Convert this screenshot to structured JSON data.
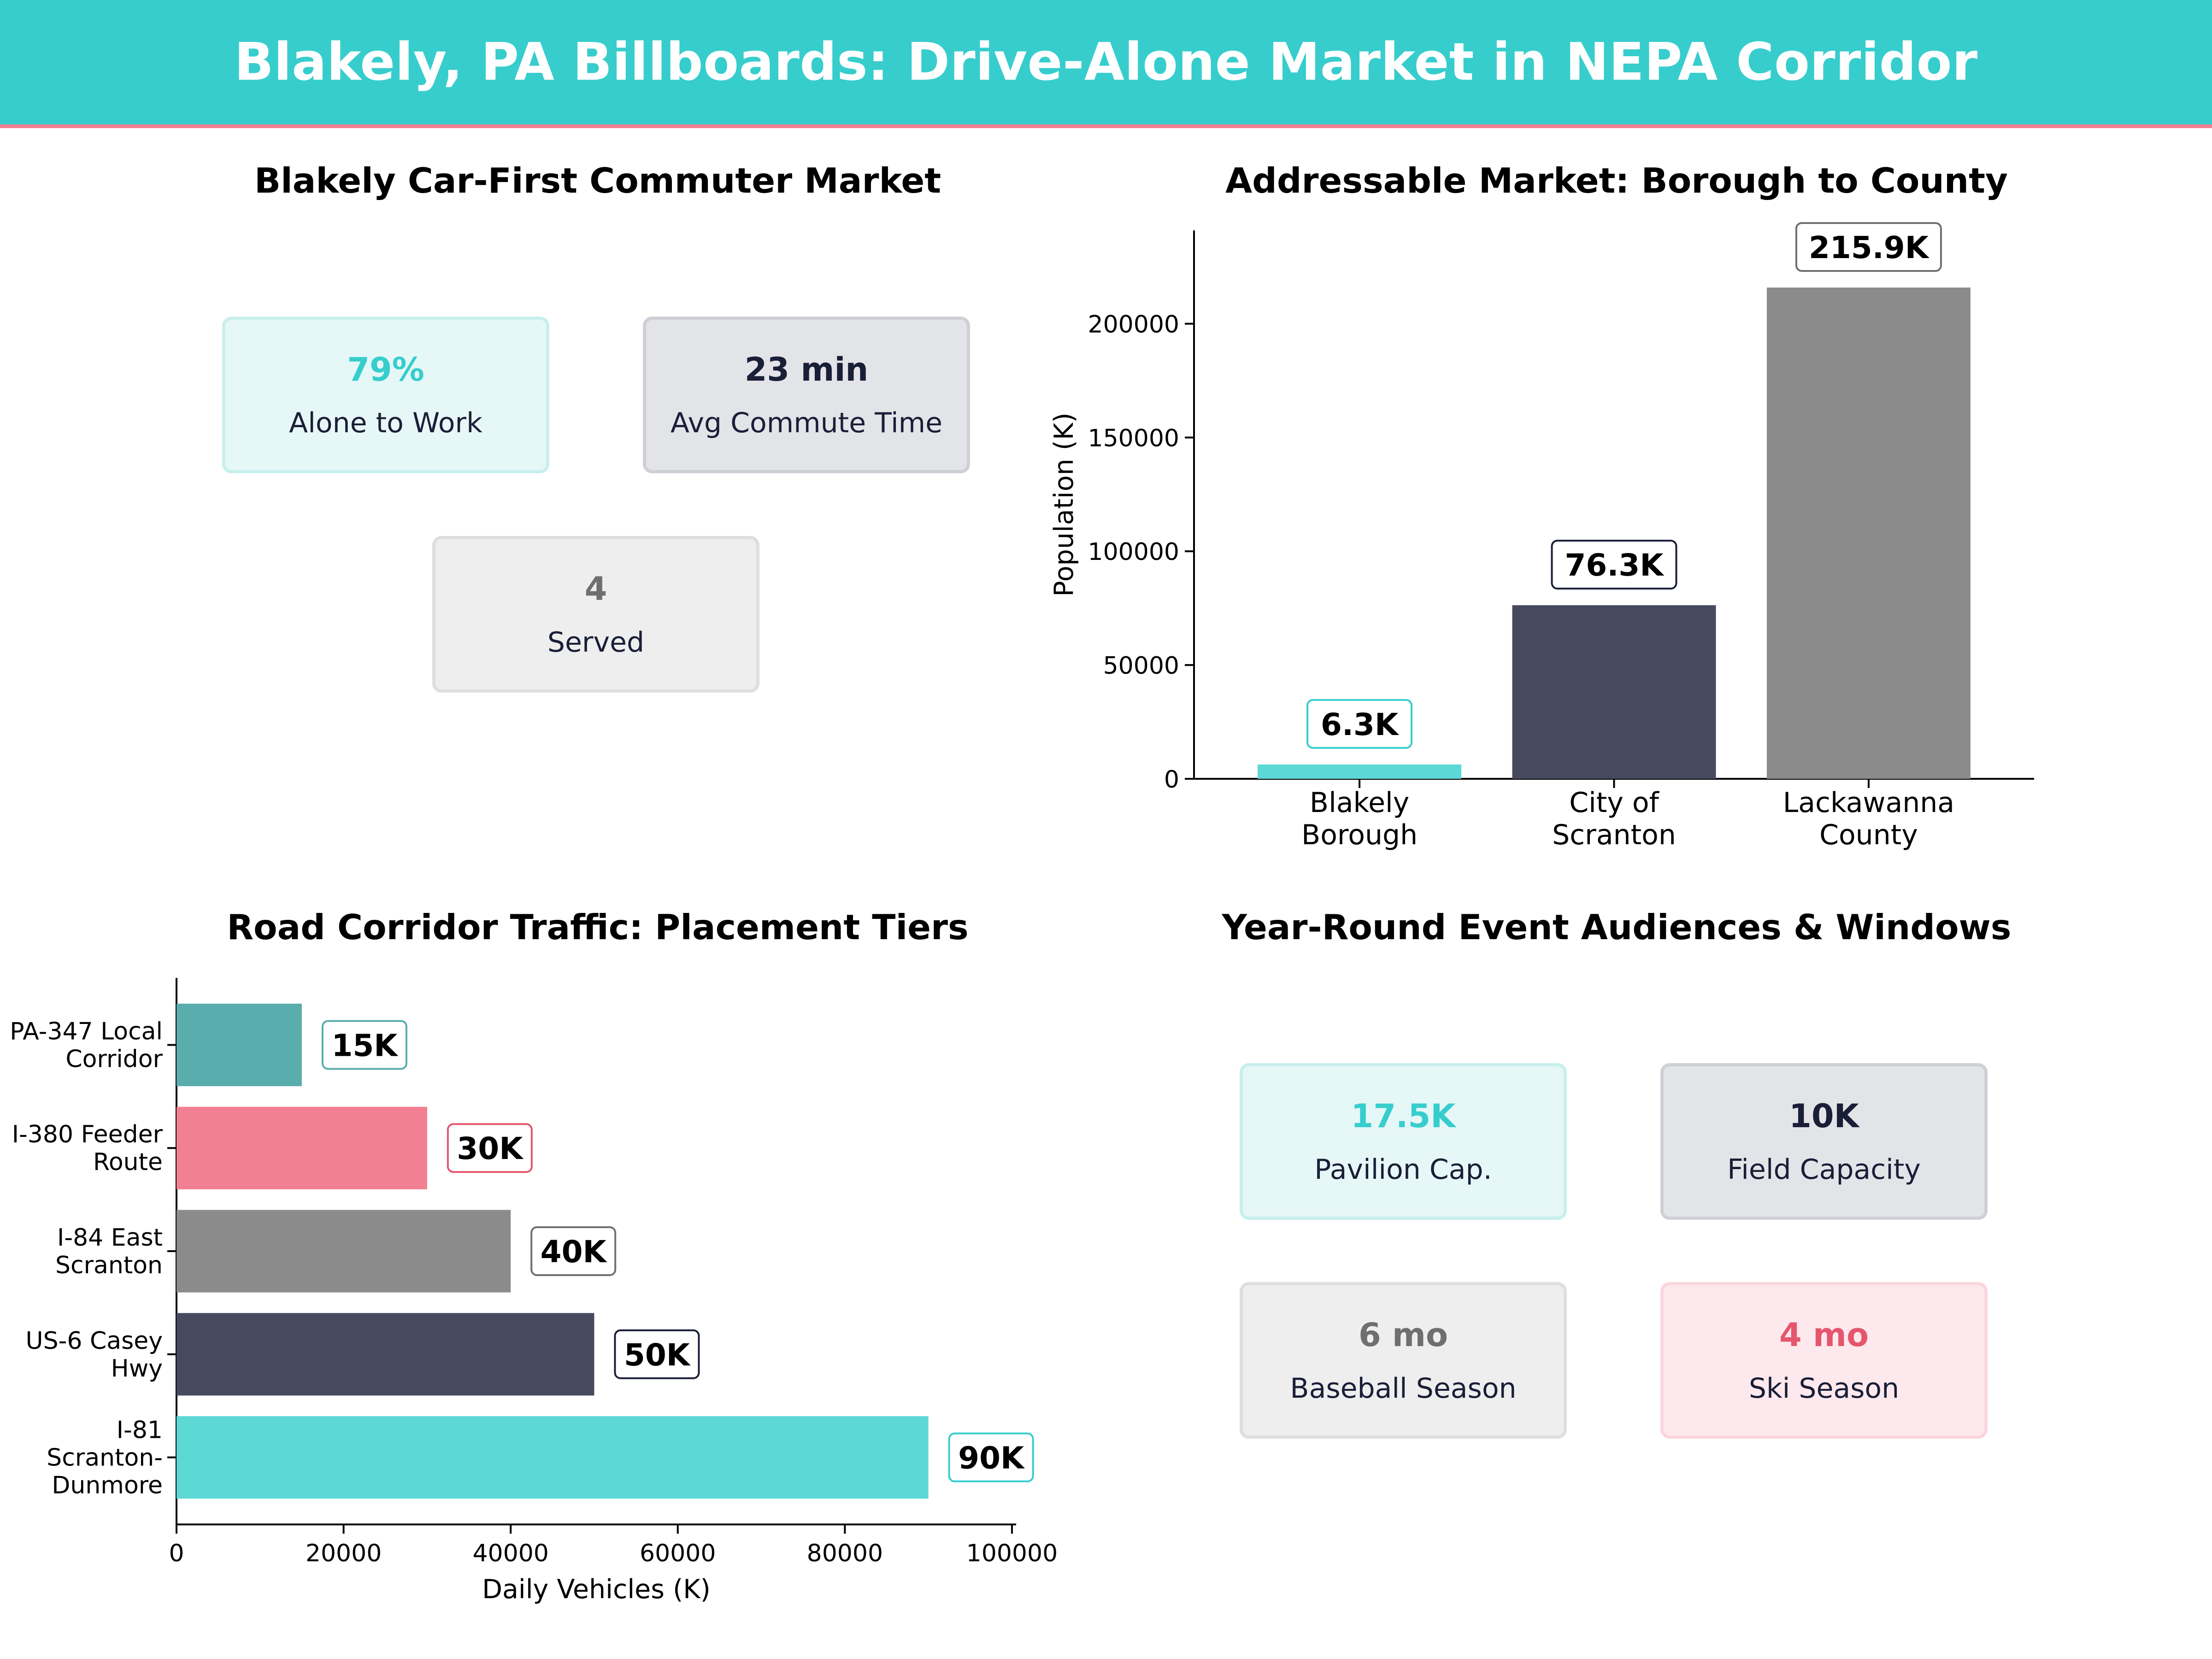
{
  "header": {
    "title": "Blakely, PA Billboards: Drive-Alone Market in NEPA Corridor"
  },
  "colors": {
    "header_bg": "#37cdcd",
    "header_rule": "#f37f93",
    "teal": "#5cd8d5",
    "teal_dark": "#5aadad",
    "navy": "#474a5f",
    "gray": "#8b8b8b",
    "pink": "#f37f93"
  },
  "kpi_panel": {
    "title": "Blakely Car-First Commuter Market",
    "cards": [
      {
        "value": "79%",
        "label": "Alone to Work",
        "style": "teal"
      },
      {
        "value": "23 min",
        "label": "Avg Commute Time",
        "style": "navy"
      },
      {
        "value": "4",
        "label": "Served",
        "style": "gray"
      }
    ]
  },
  "events_panel": {
    "title": "Year-Round Event Audiences & Windows",
    "cards": [
      {
        "value": "17.5K",
        "label": "Pavilion Cap.",
        "style": "teal"
      },
      {
        "value": "10K",
        "label": "Field Capacity",
        "style": "navy"
      },
      {
        "value": "6 mo",
        "label": "Baseball Season",
        "style": "gray"
      },
      {
        "value": "4 mo",
        "label": "Ski Season",
        "style": "pink"
      }
    ]
  },
  "chart_data": [
    {
      "type": "bar",
      "title": "Addressable Market: Borough to County",
      "xlabel": "",
      "ylabel": "Population (K)",
      "categories": [
        [
          "Blakely",
          "Borough"
        ],
        [
          "City of",
          "Scranton"
        ],
        [
          "Lackawanna",
          "County"
        ]
      ],
      "values": [
        6300,
        76300,
        215900
      ],
      "value_labels": [
        "6.3K",
        "76.3K",
        "215.9K"
      ],
      "bar_colors": [
        "#5cd8d5",
        "#474a5f",
        "#8b8b8b"
      ],
      "label_border_colors": [
        "#37cdcd",
        "#1a1e37",
        "#6f6f6f"
      ],
      "ylim": [
        0,
        241000
      ],
      "yticks": [
        0,
        50000,
        100000,
        150000,
        200000
      ],
      "grid": false
    },
    {
      "type": "bar",
      "orientation": "horizontal",
      "title": "Road Corridor Traffic: Placement Tiers",
      "xlabel": "Daily Vehicles (K)",
      "ylabel": "",
      "categories": [
        [
          "PA-347 Local",
          "Corridor"
        ],
        [
          "I-380 Feeder",
          "Route"
        ],
        [
          "I-84 East",
          "Scranton"
        ],
        [
          "US-6 Casey",
          "Hwy"
        ],
        [
          "I-81",
          "Scranton-",
          "Dunmore"
        ]
      ],
      "values": [
        15000,
        30000,
        40000,
        50000,
        90000
      ],
      "value_labels": [
        "15K",
        "30K",
        "40K",
        "50K",
        "90K"
      ],
      "bar_colors": [
        "#5aadad",
        "#f37f93",
        "#8b8b8b",
        "#474a5f",
        "#5cd8d5"
      ],
      "label_border_colors": [
        "#5aadad",
        "#e5566e",
        "#6f6f6f",
        "#1a1e37",
        "#37cdcd"
      ],
      "xlim": [
        0,
        100500
      ],
      "xticks": [
        0,
        20000,
        40000,
        60000,
        80000,
        100000
      ],
      "grid": false
    }
  ]
}
